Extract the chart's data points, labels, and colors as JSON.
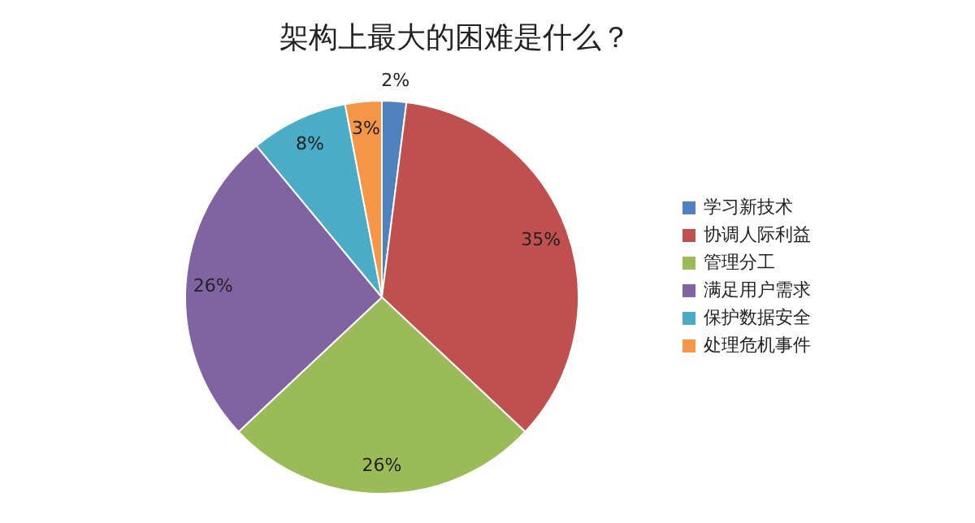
{
  "chart_data": {
    "type": "pie",
    "title": "架构上最大的困难是什么？",
    "categories": [
      "学习新技术",
      "协调人际利益",
      "管理分工",
      "满足用户需求",
      "保护数据安全",
      "处理危机事件"
    ],
    "values": [
      2,
      35,
      26,
      26,
      8,
      3
    ],
    "colors": [
      "#4f81bd",
      "#c0504d",
      "#9bbb59",
      "#8064a2",
      "#4bacc6",
      "#f79646"
    ],
    "value_labels": [
      "2%",
      "35%",
      "26%",
      "26%",
      "8%",
      "3%"
    ],
    "legend": "right"
  }
}
